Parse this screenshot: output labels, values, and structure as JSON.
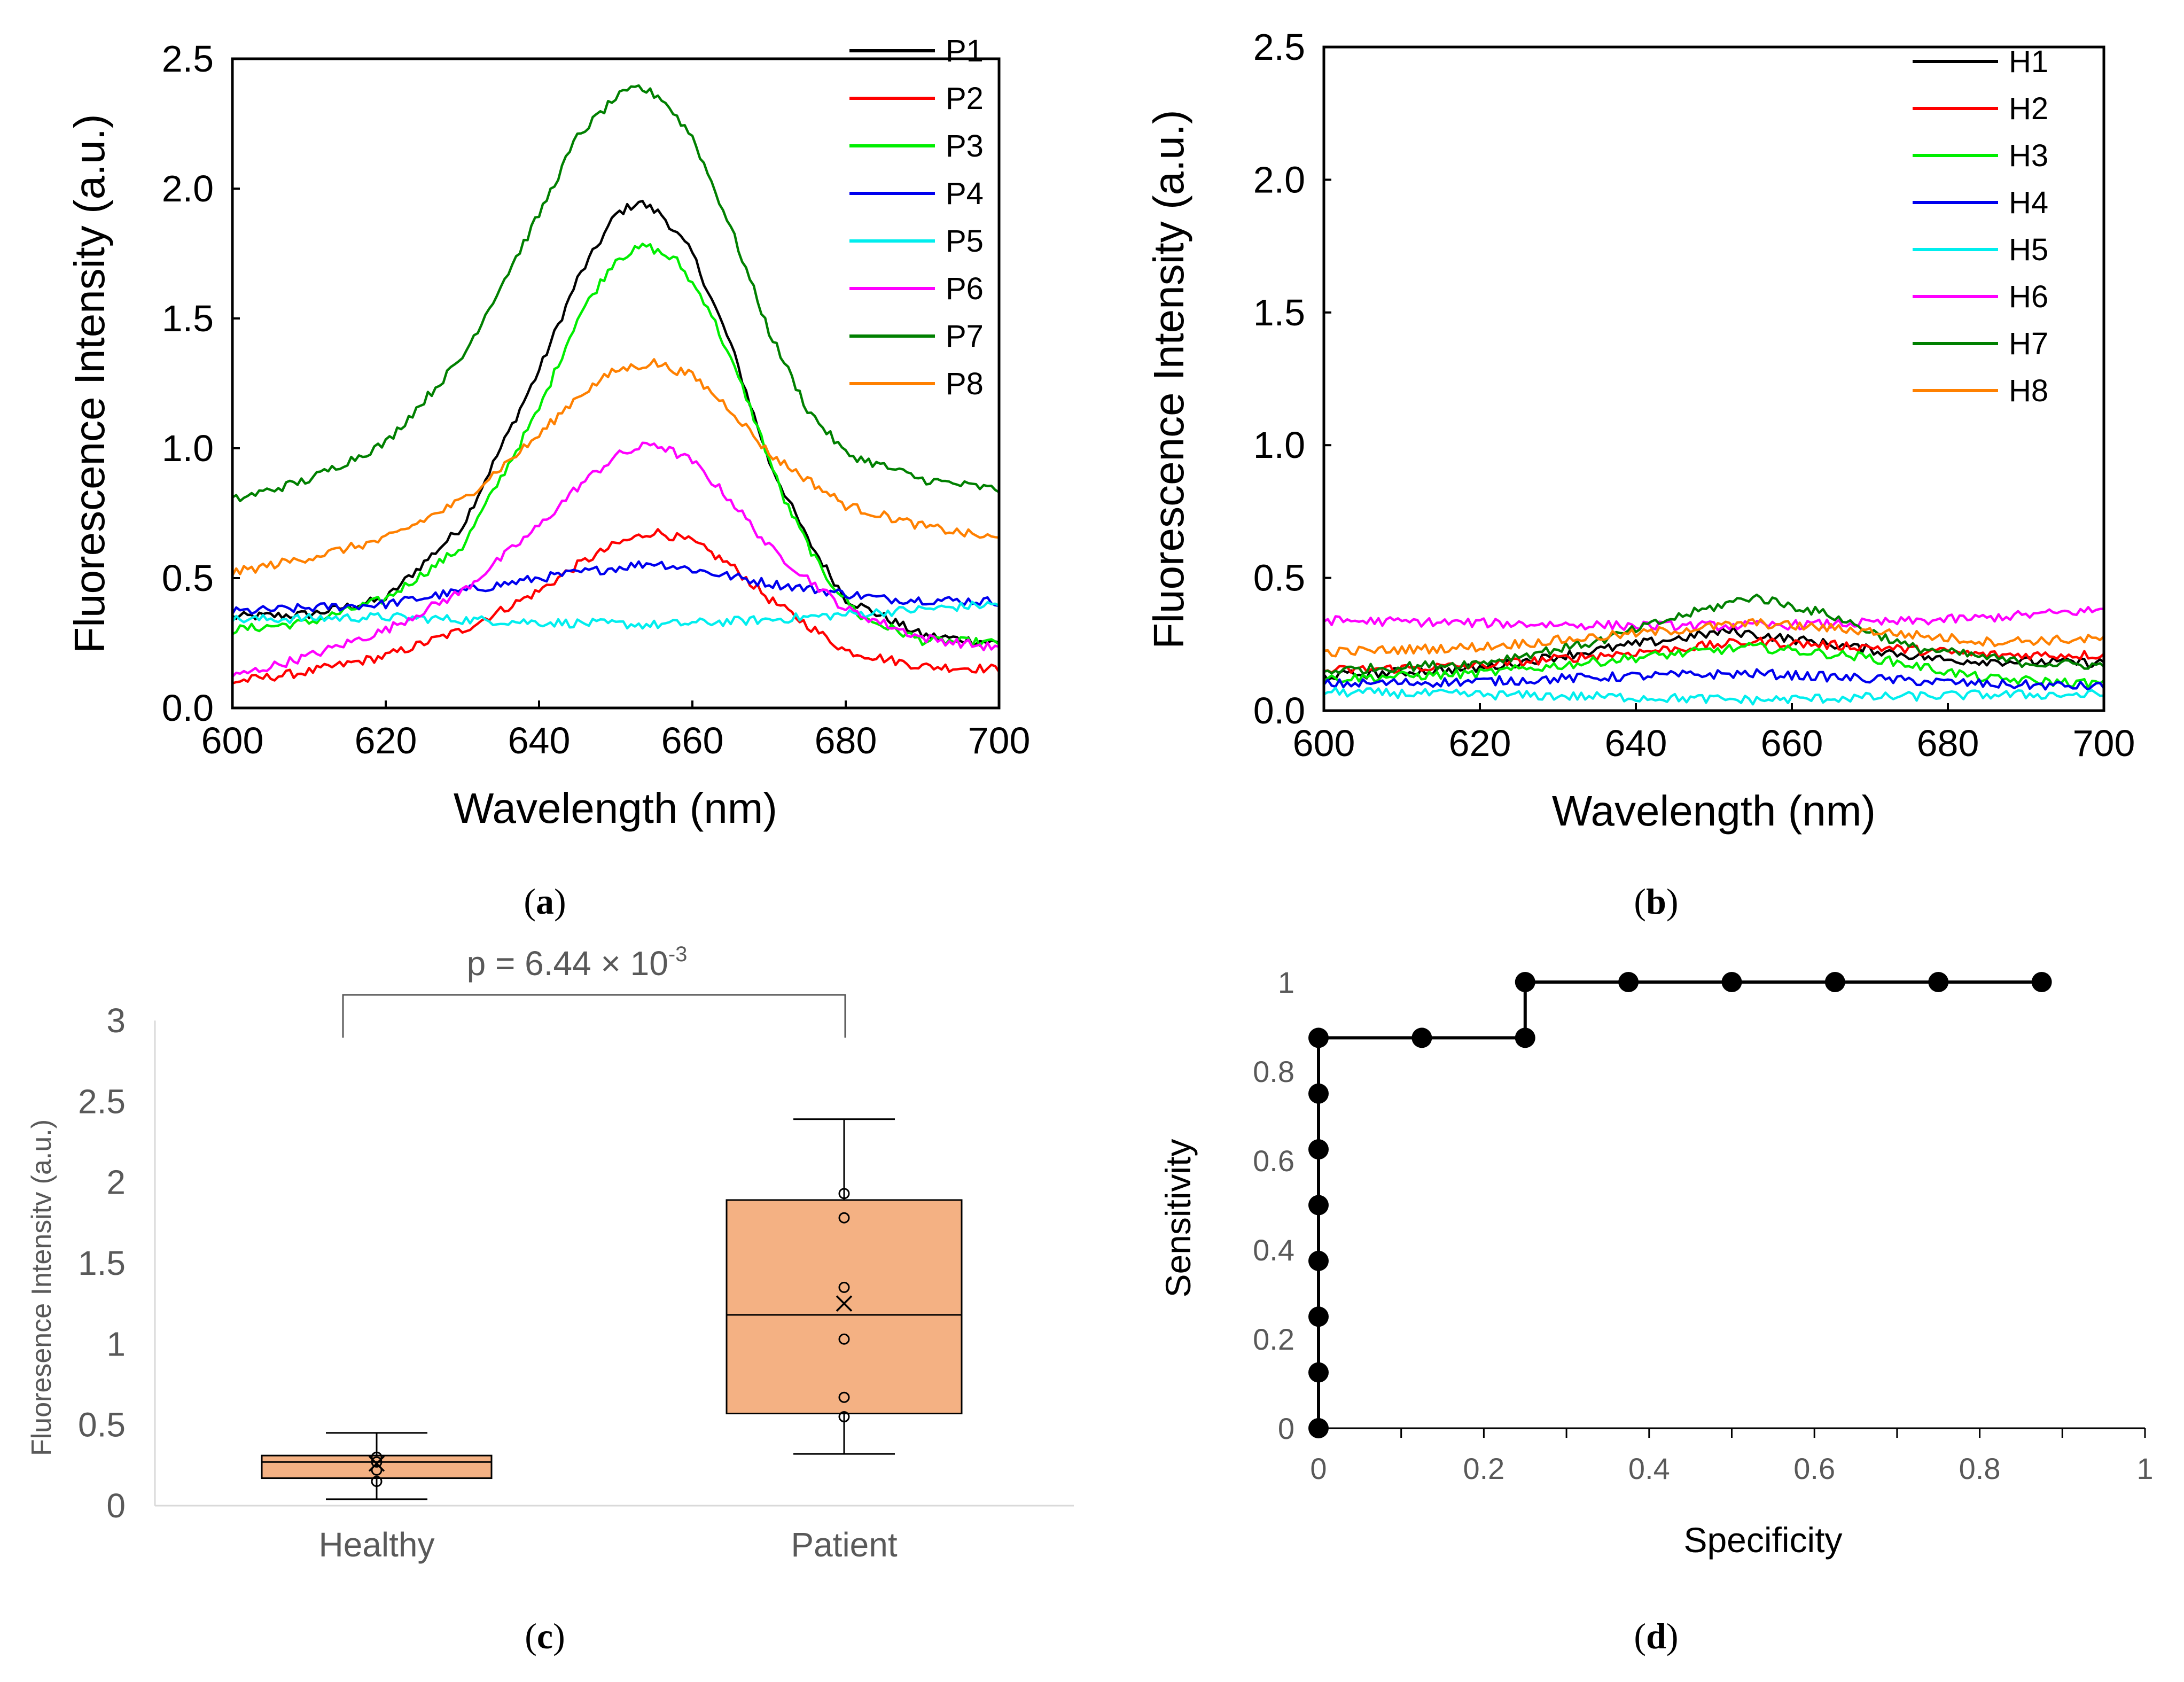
{
  "chart_data": [
    {
      "id": "a",
      "type": "line",
      "caption_letter": "a",
      "xlabel": "Wavelength (nm)",
      "ylabel": "Fluorescence Intensity (a.u.)",
      "xlim": [
        600,
        700
      ],
      "ylim": [
        0,
        2.5
      ],
      "xticks": [
        "600",
        "620",
        "640",
        "660",
        "680",
        "700"
      ],
      "yticks": [
        "0.0",
        "0.5",
        "1.0",
        "1.5",
        "2.0",
        "2.5"
      ],
      "legend_position": "top-right",
      "series": [
        {
          "name": "P1",
          "color": "#000000",
          "x": [
            600,
            610,
            620,
            630,
            640,
            645,
            650,
            653,
            656,
            660,
            665,
            670,
            675,
            680,
            690,
            700
          ],
          "y": [
            0.35,
            0.36,
            0.42,
            0.7,
            1.3,
            1.65,
            1.9,
            1.95,
            1.9,
            1.75,
            1.4,
            0.95,
            0.65,
            0.42,
            0.28,
            0.25
          ]
        },
        {
          "name": "P2",
          "color": "#ff0000",
          "x": [
            600,
            610,
            620,
            630,
            640,
            645,
            650,
            655,
            660,
            665,
            670,
            680,
            690,
            700
          ],
          "y": [
            0.1,
            0.14,
            0.2,
            0.3,
            0.45,
            0.55,
            0.63,
            0.68,
            0.64,
            0.55,
            0.42,
            0.22,
            0.16,
            0.15
          ]
        },
        {
          "name": "P3",
          "color": "#00ee00",
          "x": [
            600,
            610,
            620,
            630,
            640,
            645,
            650,
            654,
            658,
            662,
            667,
            672,
            677,
            682,
            690,
            700
          ],
          "y": [
            0.3,
            0.33,
            0.42,
            0.62,
            1.15,
            1.5,
            1.73,
            1.78,
            1.72,
            1.55,
            1.2,
            0.8,
            0.52,
            0.35,
            0.26,
            0.25
          ]
        },
        {
          "name": "P4",
          "color": "#0000ee",
          "x": [
            600,
            620,
            640,
            655,
            670,
            685,
            700
          ],
          "y": [
            0.37,
            0.4,
            0.5,
            0.56,
            0.48,
            0.42,
            0.41
          ]
        },
        {
          "name": "P5",
          "color": "#00eeee",
          "x": [
            600,
            620,
            640,
            655,
            670,
            685,
            700
          ],
          "y": [
            0.34,
            0.35,
            0.33,
            0.32,
            0.34,
            0.37,
            0.4
          ]
        },
        {
          "name": "P6",
          "color": "#ff00ff",
          "x": [
            600,
            610,
            620,
            630,
            640,
            645,
            650,
            655,
            660,
            665,
            670,
            680,
            690,
            700
          ],
          "y": [
            0.12,
            0.2,
            0.3,
            0.45,
            0.7,
            0.85,
            0.97,
            1.02,
            0.95,
            0.8,
            0.62,
            0.38,
            0.27,
            0.23
          ]
        },
        {
          "name": "P7",
          "color": "#008000",
          "x": [
            600,
            610,
            620,
            630,
            640,
            645,
            650,
            653,
            656,
            660,
            665,
            670,
            675,
            680,
            690,
            700
          ],
          "y": [
            0.8,
            0.88,
            1.02,
            1.35,
            1.9,
            2.2,
            2.35,
            2.39,
            2.35,
            2.2,
            1.85,
            1.45,
            1.15,
            0.98,
            0.88,
            0.84
          ]
        },
        {
          "name": "P8",
          "color": "#ff8000",
          "x": [
            600,
            610,
            620,
            630,
            640,
            645,
            650,
            655,
            660,
            665,
            670,
            680,
            690,
            700
          ],
          "y": [
            0.52,
            0.58,
            0.65,
            0.8,
            1.05,
            1.2,
            1.3,
            1.33,
            1.28,
            1.15,
            0.98,
            0.78,
            0.7,
            0.65
          ]
        }
      ]
    },
    {
      "id": "b",
      "type": "line",
      "caption_letter": "b",
      "xlabel": "Wavelength (nm)",
      "ylabel": "Fluorescence Intensity (a.u.)",
      "xlim": [
        600,
        700
      ],
      "ylim": [
        0,
        2.5
      ],
      "xticks": [
        "600",
        "620",
        "640",
        "660",
        "680",
        "700"
      ],
      "yticks": [
        "0.0",
        "0.5",
        "1.0",
        "1.5",
        "2.0",
        "2.5"
      ],
      "legend_position": "top-right",
      "series": [
        {
          "name": "H1",
          "color": "#000000",
          "x": [
            600,
            620,
            640,
            652,
            665,
            680,
            700
          ],
          "y": [
            0.13,
            0.16,
            0.25,
            0.3,
            0.25,
            0.19,
            0.18
          ]
        },
        {
          "name": "H2",
          "color": "#ff0000",
          "x": [
            600,
            620,
            640,
            655,
            670,
            685,
            700
          ],
          "y": [
            0.15,
            0.17,
            0.22,
            0.26,
            0.24,
            0.21,
            0.21
          ]
        },
        {
          "name": "H3",
          "color": "#00ee00",
          "x": [
            600,
            620,
            640,
            655,
            670,
            685,
            700
          ],
          "y": [
            0.12,
            0.14,
            0.2,
            0.24,
            0.2,
            0.12,
            0.1
          ]
        },
        {
          "name": "H4",
          "color": "#0000ee",
          "x": [
            600,
            620,
            640,
            655,
            670,
            685,
            700
          ],
          "y": [
            0.1,
            0.11,
            0.13,
            0.14,
            0.12,
            0.1,
            0.09
          ]
        },
        {
          "name": "H5",
          "color": "#00eeee",
          "x": [
            600,
            620,
            640,
            655,
            670,
            685,
            700
          ],
          "y": [
            0.07,
            0.06,
            0.05,
            0.04,
            0.05,
            0.06,
            0.06
          ]
        },
        {
          "name": "H6",
          "color": "#ff00ff",
          "x": [
            600,
            620,
            640,
            655,
            670,
            685,
            700
          ],
          "y": [
            0.34,
            0.33,
            0.32,
            0.32,
            0.33,
            0.35,
            0.38
          ]
        },
        {
          "name": "H7",
          "color": "#008000",
          "x": [
            600,
            620,
            635,
            645,
            655,
            665,
            675,
            690,
            700
          ],
          "y": [
            0.15,
            0.18,
            0.26,
            0.35,
            0.43,
            0.36,
            0.24,
            0.18,
            0.17
          ]
        },
        {
          "name": "H8",
          "color": "#ff8000",
          "x": [
            600,
            620,
            640,
            655,
            670,
            685,
            700
          ],
          "y": [
            0.22,
            0.24,
            0.29,
            0.33,
            0.3,
            0.26,
            0.27
          ]
        }
      ]
    },
    {
      "id": "c",
      "type": "box",
      "caption_letter": "c",
      "ylabel": "Fluoresence Intensitv (a.u.)",
      "ylim": [
        0,
        3
      ],
      "yticks": [
        "0",
        "0.5",
        "1",
        "1.5",
        "2",
        "2.5",
        "3"
      ],
      "categories": [
        "Healthy",
        "Patient"
      ],
      "annotation": {
        "base": "p = 6.44 × 10",
        "exponent": "-3"
      },
      "fill": "#f4b183",
      "boxes": [
        {
          "name": "Healthy",
          "whisker_low": 0.04,
          "q1": 0.17,
          "median": 0.27,
          "q3": 0.31,
          "whisker_high": 0.45,
          "mean": 0.26,
          "points": [
            0.15,
            0.22,
            0.27,
            0.3
          ]
        },
        {
          "name": "Patient",
          "whisker_low": 0.32,
          "q1": 0.57,
          "median": 1.18,
          "q3": 1.89,
          "whisker_high": 2.39,
          "mean": 1.25,
          "points": [
            0.55,
            0.67,
            1.03,
            1.35,
            1.78,
            1.93
          ]
        }
      ]
    },
    {
      "id": "d",
      "type": "line",
      "caption_letter": "d",
      "xlabel": "Specificity",
      "ylabel": "Sensitivity",
      "xlim": [
        0,
        1
      ],
      "ylim": [
        0,
        1
      ],
      "xticks": [
        "0",
        "0.2",
        "0.4",
        "0.6",
        "0.8",
        "1"
      ],
      "yticks": [
        "0",
        "0.2",
        "0.4",
        "0.6",
        "0.8",
        "1"
      ],
      "x": [
        0,
        0,
        0,
        0,
        0,
        0,
        0,
        0,
        0.125,
        0.25,
        0.25,
        0.375,
        0.5,
        0.625,
        0.75,
        0.875
      ],
      "y": [
        0,
        0.125,
        0.25,
        0.375,
        0.5,
        0.625,
        0.75,
        0.875,
        0.875,
        0.875,
        1,
        1,
        1,
        1,
        1,
        1
      ]
    }
  ]
}
